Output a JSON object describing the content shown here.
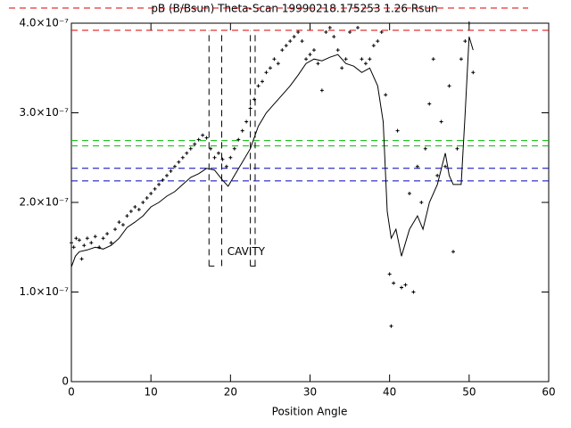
{
  "chart_data": {
    "type": "line",
    "title": "pB (B/Bsun) Theta-Scan 19990218.175253 1.26 Rsun",
    "xlabel": "Position Angle",
    "annotation": {
      "text": "CAVITY",
      "x": 19.6,
      "y": 1.45e-07,
      "color": "#dd0000"
    },
    "xlim": [
      0,
      60
    ],
    "xticks": [
      0,
      10,
      20,
      30,
      40,
      50,
      60
    ],
    "ylim": [
      0,
      4e-07
    ],
    "yticks": [
      0,
      {
        "value": 1e-07,
        "label": "1.0×10⁻⁷"
      },
      {
        "value": 2e-07,
        "label": "2.0×10⁻⁷"
      },
      {
        "value": 3e-07,
        "label": "3.0×10⁻⁷"
      },
      {
        "value": 4e-07,
        "label": "4.0×10⁻⁷"
      }
    ],
    "hlines": [
      {
        "value": 3.92e-07,
        "color": "#dd0000"
      },
      {
        "value": 2.69e-07,
        "color": "#00bb00"
      },
      {
        "value": 2.63e-07,
        "color": "#00bb00"
      },
      {
        "value": 2.38e-07,
        "color": "#0000bb"
      },
      {
        "value": 2.24e-07,
        "color": "#0000bb"
      }
    ],
    "vlines": {
      "x": [
        17.3,
        18.9,
        22.5,
        23.1
      ],
      "ylim": [
        1.29e-07,
        3.92e-07
      ],
      "color": "#000000"
    },
    "line": {
      "color": "#000000",
      "x": [
        0,
        0.5,
        1,
        2,
        3,
        4,
        5,
        6,
        7,
        8,
        9,
        10,
        11,
        12,
        13,
        14,
        15,
        16,
        17,
        18,
        19,
        19.7,
        20.5,
        21.5,
        22.5,
        23.5,
        24.5,
        25.5,
        26.5,
        27.5,
        28.5,
        29.5,
        30.5,
        31.5,
        32.5,
        33.5,
        34.5,
        35.5,
        36.5,
        37.5,
        38.5,
        39.2,
        39.7,
        40.2,
        40.8,
        41.5,
        42.5,
        43.5,
        44.2,
        45,
        46,
        47,
        47.5,
        48,
        49,
        49.5,
        50,
        50.5
      ],
      "y": [
        1.28e-07,
        1.4e-07,
        1.45e-07,
        1.47e-07,
        1.5e-07,
        1.48e-07,
        1.52e-07,
        1.6e-07,
        1.72e-07,
        1.78e-07,
        1.85e-07,
        1.95e-07,
        2e-07,
        2.07e-07,
        2.12e-07,
        2.2e-07,
        2.28e-07,
        2.32e-07,
        2.38e-07,
        2.36e-07,
        2.25e-07,
        2.18e-07,
        2.3e-07,
        2.45e-07,
        2.6e-07,
        2.85e-07,
        3e-07,
        3.1e-07,
        3.2e-07,
        3.3e-07,
        3.42e-07,
        3.55e-07,
        3.6e-07,
        3.58e-07,
        3.62e-07,
        3.65e-07,
        3.55e-07,
        3.52e-07,
        3.45e-07,
        3.5e-07,
        3.3e-07,
        2.9e-07,
        1.9e-07,
        1.6e-07,
        1.7e-07,
        1.4e-07,
        1.7e-07,
        1.85e-07,
        1.7e-07,
        2e-07,
        2.2e-07,
        2.55e-07,
        2.3e-07,
        2.2e-07,
        2.2e-07,
        3e-07,
        3.85e-07,
        3.7e-07
      ]
    },
    "points": {
      "color": "#000000",
      "x": [
        0,
        0.3,
        0.6,
        1,
        1.3,
        1.6,
        2,
        2.5,
        3,
        3.5,
        4,
        4.5,
        5,
        5.5,
        6,
        6.5,
        7,
        7.5,
        8,
        8.5,
        9,
        9.5,
        10,
        10.5,
        11,
        11.5,
        12,
        12.5,
        13,
        13.5,
        14,
        14.5,
        15,
        15.5,
        16,
        16.5,
        17,
        17.5,
        18,
        18.5,
        19,
        19.5,
        20,
        20.5,
        21,
        21.5,
        22,
        22.5,
        23,
        23.5,
        24,
        24.5,
        25,
        25.5,
        26,
        26.5,
        27,
        27.5,
        28,
        28.5,
        29,
        29.5,
        30,
        30.5,
        31,
        31.5,
        32,
        32.5,
        33,
        33.5,
        34,
        34.5,
        35,
        36,
        36.5,
        37,
        37.5,
        38,
        38.5,
        39,
        39.5,
        40,
        40.2,
        40.5,
        41,
        41.5,
        42,
        42.5,
        43,
        43.5,
        44,
        44.5,
        45,
        45.5,
        46,
        46.5,
        47,
        47.5,
        48,
        48.5,
        49,
        49.5,
        50,
        50.5
      ],
      "y": [
        1.55e-07,
        1.5e-07,
        1.6e-07,
        1.58e-07,
        1.37e-07,
        1.52e-07,
        1.6e-07,
        1.55e-07,
        1.62e-07,
        1.5e-07,
        1.6e-07,
        1.65e-07,
        1.55e-07,
        1.7e-07,
        1.78e-07,
        1.75e-07,
        1.85e-07,
        1.9e-07,
        1.95e-07,
        1.92e-07,
        2e-07,
        2.05e-07,
        2.1e-07,
        2.15e-07,
        2.2e-07,
        2.25e-07,
        2.3e-07,
        2.35e-07,
        2.4e-07,
        2.45e-07,
        2.5e-07,
        2.55e-07,
        2.6e-07,
        2.65e-07,
        2.7e-07,
        2.75e-07,
        2.72e-07,
        2.6e-07,
        2.5e-07,
        2.55e-07,
        2.48e-07,
        2.4e-07,
        2.5e-07,
        2.6e-07,
        2.7e-07,
        2.8e-07,
        2.9e-07,
        3.05e-07,
        3.15e-07,
        3.3e-07,
        3.35e-07,
        3.45e-07,
        3.5e-07,
        3.6e-07,
        3.55e-07,
        3.7e-07,
        3.75e-07,
        3.8e-07,
        3.85e-07,
        3.9e-07,
        3.8e-07,
        3.6e-07,
        3.65e-07,
        3.7e-07,
        3.55e-07,
        3.25e-07,
        3.9e-07,
        3.95e-07,
        3.85e-07,
        3.7e-07,
        3.5e-07,
        3.6e-07,
        3.9e-07,
        3.95e-07,
        3.6e-07,
        3.55e-07,
        3.6e-07,
        3.75e-07,
        3.8e-07,
        3.9e-07,
        3.2e-07,
        1.2e-07,
        6.2e-08,
        1.1e-07,
        2.8e-07,
        1.05e-07,
        1.08e-07,
        2.1e-07,
        1e-07,
        2.4e-07,
        2e-07,
        2.6e-07,
        3.1e-07,
        3.6e-07,
        2.3e-07,
        2.9e-07,
        2.4e-07,
        3.3e-07,
        1.45e-07,
        2.6e-07,
        3.6e-07,
        3.8e-07,
        4e-07,
        3.45e-07
      ]
    }
  }
}
